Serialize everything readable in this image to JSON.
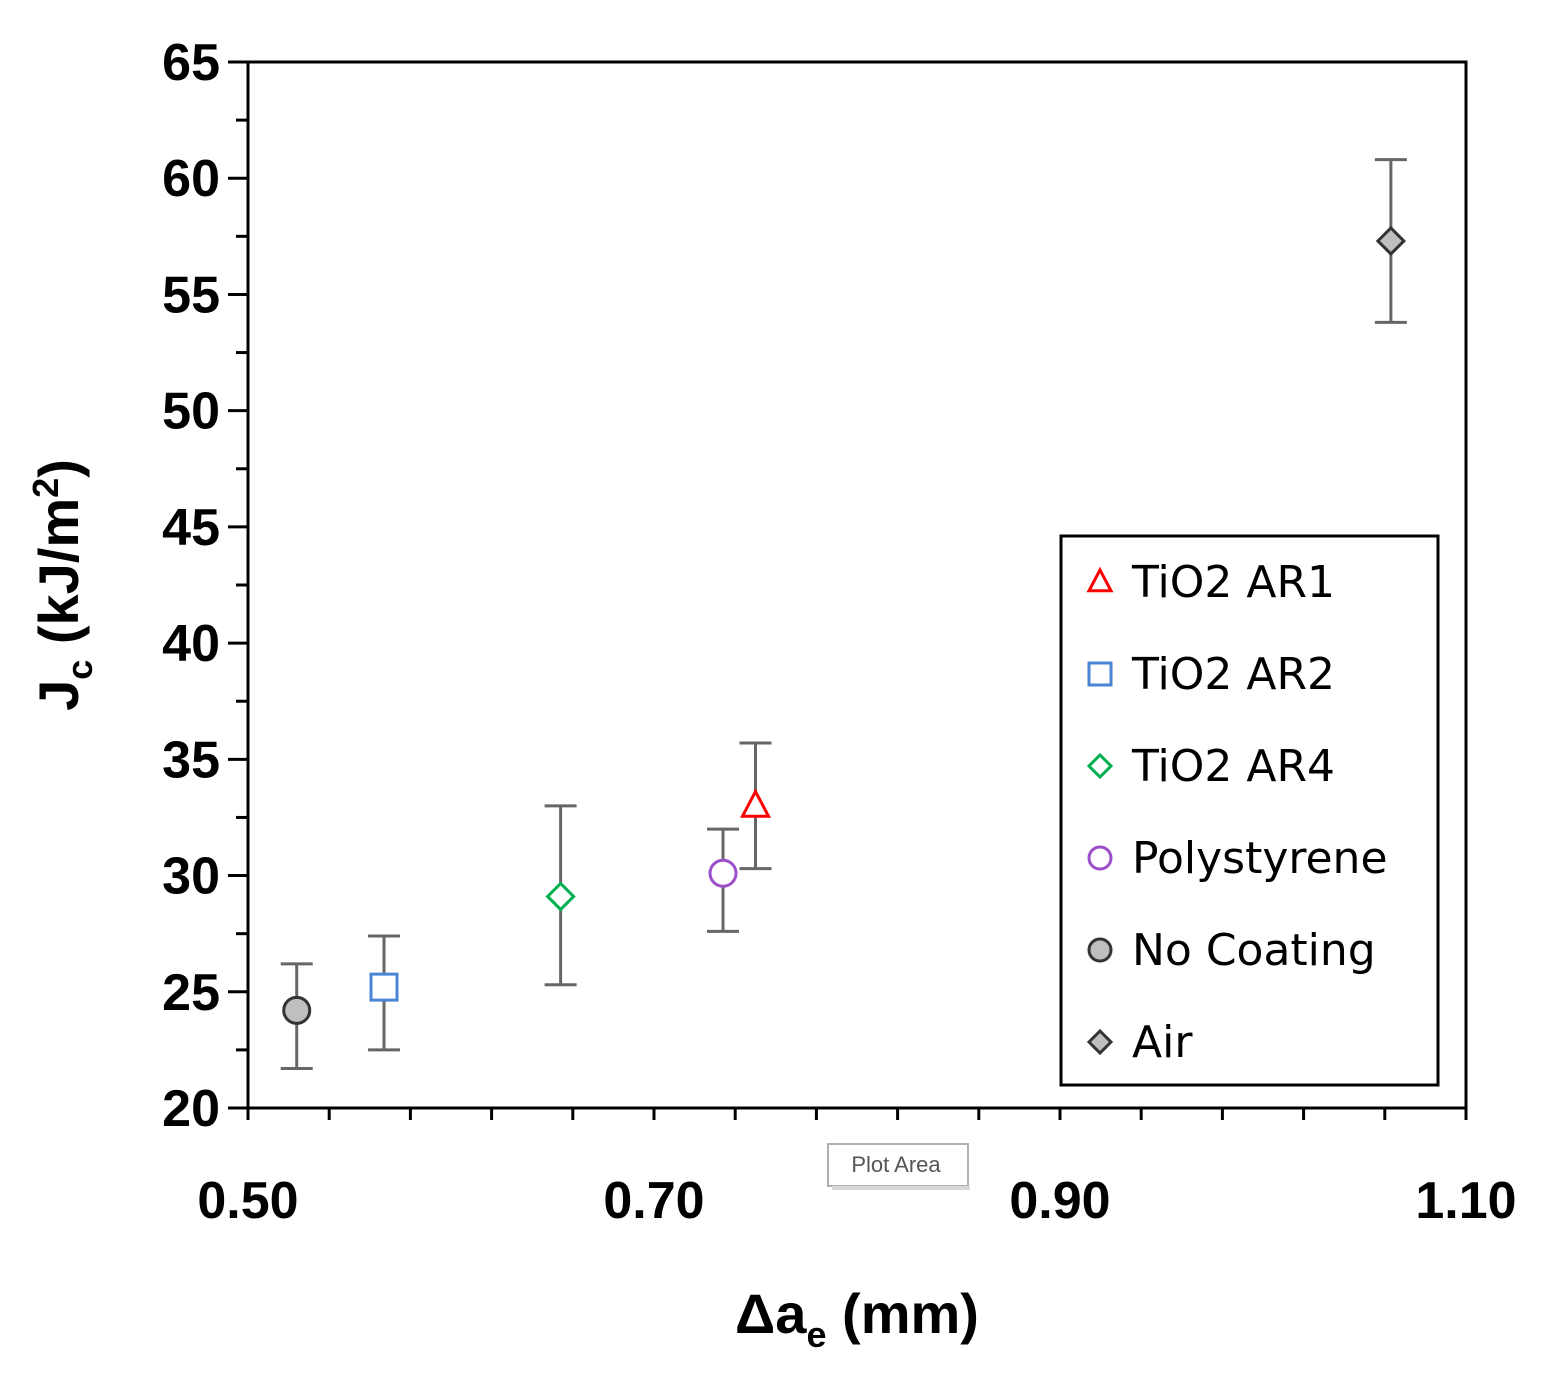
{
  "chart_data": {
    "type": "scatter",
    "title": "",
    "xlabel": "Δa",
    "xlabel_sub": "e",
    "xlabel_unit": " (mm)",
    "ylabel": "J",
    "ylabel_sub": "c",
    "ylabel_unit": " (kJ/m",
    "ylabel_sup": "2",
    "ylabel_close": ")",
    "xlim": [
      0.5,
      1.1
    ],
    "ylim": [
      20,
      65
    ],
    "x_ticks": [
      "0.50",
      "0.70",
      "0.90",
      "1.10"
    ],
    "y_ticks": [
      "20",
      "25",
      "30",
      "35",
      "40",
      "45",
      "50",
      "55",
      "60",
      "65"
    ],
    "x_minor_step": 0.04,
    "y_minor_step": 2.5,
    "grid": false,
    "legend_position": "lower-right",
    "series": [
      {
        "name": "TiO2  AR1",
        "marker": "triangle",
        "stroke": "#ff0000",
        "fill": "#ffffff",
        "x": 0.75,
        "y": 33.0,
        "err_low": 30.3,
        "err_high": 35.7
      },
      {
        "name": "TiO2  AR2",
        "marker": "square",
        "stroke": "#4a86d4",
        "fill": "#ffffff",
        "x": 0.567,
        "y": 25.2,
        "err_low": 22.5,
        "err_high": 27.4
      },
      {
        "name": "TiO2  AR4",
        "marker": "diamond",
        "stroke": "#00b050",
        "fill": "#ffffff",
        "x": 0.654,
        "y": 29.1,
        "err_low": 25.3,
        "err_high": 33.0
      },
      {
        "name": "Polystyrene",
        "marker": "circle",
        "stroke": "#9b4fc9",
        "fill": "#ffffff",
        "x": 0.734,
        "y": 30.1,
        "err_low": 27.6,
        "err_high": 32.0
      },
      {
        "name": "No Coating",
        "marker": "circle",
        "stroke": "#333333",
        "fill": "#bfbfbf",
        "x": 0.524,
        "y": 24.2,
        "err_low": 21.7,
        "err_high": 26.2
      },
      {
        "name": "Air",
        "marker": "diamond",
        "stroke": "#333333",
        "fill": "#bfbfbf",
        "x": 1.063,
        "y": 57.3,
        "err_low": 53.8,
        "err_high": 60.8
      }
    ]
  },
  "tooltip": {
    "label": "Plot Area"
  }
}
